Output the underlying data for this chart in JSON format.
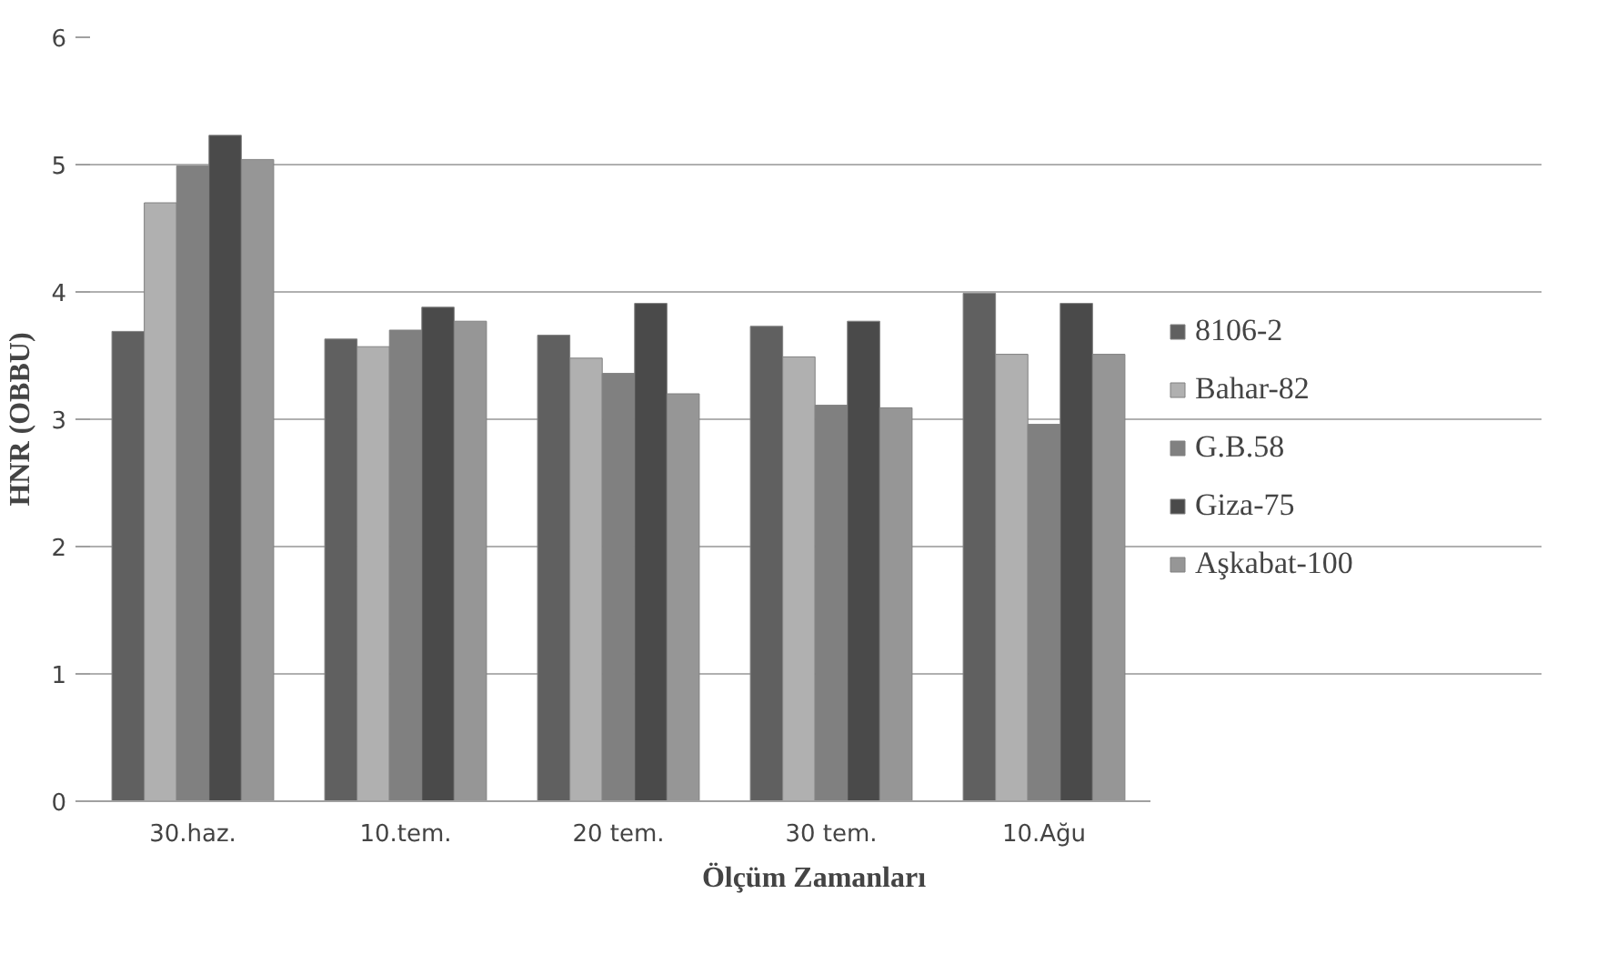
{
  "chart_data": {
    "type": "bar",
    "xlabel": "Ölçüm Zamanları",
    "ylabel": "HNR (OBBU)",
    "categories": [
      "30.haz.",
      "10.tem.",
      "20 tem.",
      "30 tem.",
      "10.Ağu"
    ],
    "series": [
      {
        "name": "8106-2",
        "color": "#606060",
        "values": [
          3.69,
          3.63,
          3.66,
          3.73,
          3.99
        ]
      },
      {
        "name": "Bahar-82",
        "color": "#b0b0b0",
        "values": [
          4.7,
          3.57,
          3.48,
          3.49,
          3.51
        ]
      },
      {
        "name": "G.B.58",
        "color": "#808080",
        "values": [
          4.99,
          3.7,
          3.36,
          3.11,
          2.96
        ]
      },
      {
        "name": "Giza-75",
        "color": "#4a4a4a",
        "values": [
          5.23,
          3.88,
          3.91,
          3.77,
          3.91
        ]
      },
      {
        "name": "Aşkabat-100",
        "color": "#969696",
        "values": [
          5.04,
          3.77,
          3.2,
          3.09,
          3.51
        ]
      }
    ],
    "ylim": [
      0,
      6
    ],
    "yticks": [
      0,
      1,
      2,
      3,
      4,
      5,
      6
    ],
    "grid": "y",
    "legend": "right"
  }
}
